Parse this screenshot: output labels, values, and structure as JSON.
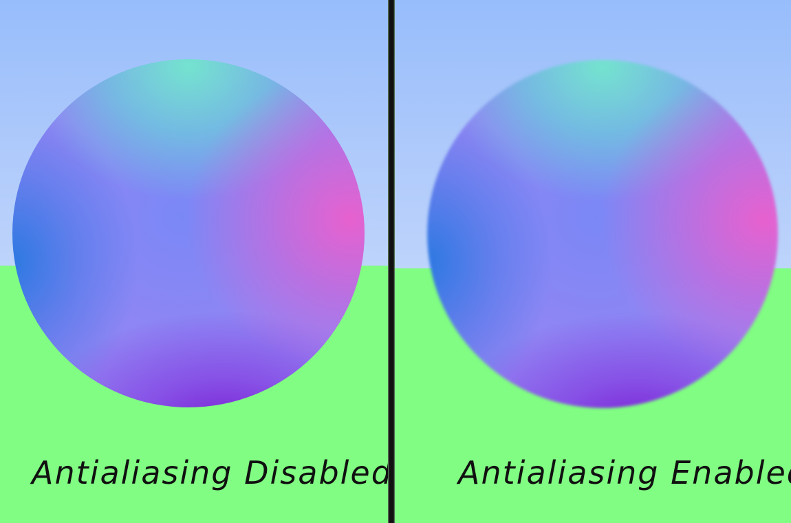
{
  "left_panel": {
    "caption": "Antialiasing Disabled"
  },
  "right_panel": {
    "caption": "Antialiasing Enabled"
  },
  "colors": {
    "sky_top": "#97bdfb",
    "sky_bottom": "#bdd4fb",
    "ground": "#80fd82",
    "divider": "#111111",
    "sphere_top": "#73e8cd",
    "sphere_left": "#2878e1",
    "sphere_right": "#eb5fcd",
    "sphere_bottom": "#7a1ad2",
    "caption_text": "#111111"
  }
}
